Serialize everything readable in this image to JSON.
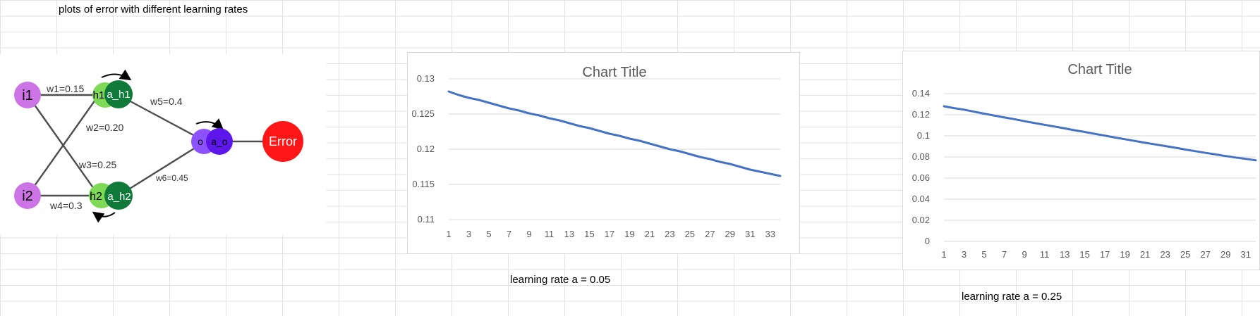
{
  "sheet": {
    "heading": "plots of error with different learning rates",
    "caption1": "learning rate a = 0.05",
    "caption2": "learning rate a = 0.25"
  },
  "network": {
    "nodes": {
      "i1": "i1",
      "i2": "i2",
      "h1": "h1",
      "a_h1": "a_h1",
      "h2": "h2",
      "a_h2": "a_h2",
      "o": "o",
      "a_o": "a_o",
      "error": "Error"
    },
    "weights": {
      "w1": "w1=0.15",
      "w2": "w2=0.20",
      "w3": "w3=0.25",
      "w4": "w4=0.3",
      "w5": "w5=0.4",
      "w6": "w6=0.45"
    },
    "colors": {
      "input": "#cc73e6",
      "hidden_light": "#7ed957",
      "hidden_dark": "#0f7a3a",
      "out_light": "#8c52ff",
      "out_dark": "#5e17eb",
      "error": "#ff1616",
      "edge": "#4d4d4d"
    }
  },
  "chart_data": [
    {
      "type": "line",
      "title": "Chart Title",
      "x": [
        1,
        2,
        3,
        4,
        5,
        6,
        7,
        8,
        9,
        10,
        11,
        12,
        13,
        14,
        15,
        16,
        17,
        18,
        19,
        20,
        21,
        22,
        23,
        24,
        25,
        26,
        27,
        28,
        29,
        30,
        31,
        32,
        33,
        34
      ],
      "x_tick_labels": [
        "1",
        "3",
        "5",
        "7",
        "9",
        "11",
        "13",
        "15",
        "17",
        "19",
        "21",
        "23",
        "25",
        "27",
        "29",
        "31",
        "33"
      ],
      "y_tick_labels": [
        "0.11",
        "0.115",
        "0.12",
        "0.125",
        "0.13"
      ],
      "ylim": [
        0.11,
        0.13
      ],
      "grid": true,
      "series": [
        {
          "color": "#4472c4",
          "values": [
            0.1282,
            0.1277,
            0.1273,
            0.127,
            0.1266,
            0.1262,
            0.1258,
            0.1255,
            0.1251,
            0.1248,
            0.1244,
            0.1241,
            0.1237,
            0.1233,
            0.123,
            0.1226,
            0.1222,
            0.1219,
            0.1215,
            0.1212,
            0.1208,
            0.1204,
            0.12,
            0.1197,
            0.1193,
            0.1189,
            0.1186,
            0.1182,
            0.1179,
            0.1175,
            0.1171,
            0.1168,
            0.1165,
            0.1162
          ]
        }
      ]
    },
    {
      "type": "line",
      "title": "Chart Title",
      "x": [
        1,
        2,
        3,
        4,
        5,
        6,
        7,
        8,
        9,
        10,
        11,
        12,
        13,
        14,
        15,
        16,
        17,
        18,
        19,
        20,
        21,
        22,
        23,
        24,
        25,
        26,
        27,
        28,
        29,
        30,
        31,
        32
      ],
      "x_tick_labels": [
        "1",
        "3",
        "5",
        "7",
        "9",
        "11",
        "13",
        "15",
        "17",
        "19",
        "21",
        "23",
        "25",
        "27",
        "29",
        "31"
      ],
      "y_tick_labels": [
        "0",
        "0.02",
        "0.04",
        "0.06",
        "0.08",
        "0.1",
        "0.12",
        "0.14"
      ],
      "ylim": [
        0,
        0.14
      ],
      "grid": true,
      "series": [
        {
          "color": "#4472c4",
          "values": [
            0.128,
            0.1263,
            0.1248,
            0.1229,
            0.121,
            0.1192,
            0.1174,
            0.1158,
            0.1139,
            0.1121,
            0.1105,
            0.1088,
            0.1071,
            0.1053,
            0.1037,
            0.1019,
            0.1002,
            0.0984,
            0.0968,
            0.0951,
            0.0934,
            0.0919,
            0.0903,
            0.0887,
            0.087,
            0.0855,
            0.0839,
            0.0824,
            0.0809,
            0.0795,
            0.0782,
            0.0768
          ]
        }
      ]
    }
  ]
}
